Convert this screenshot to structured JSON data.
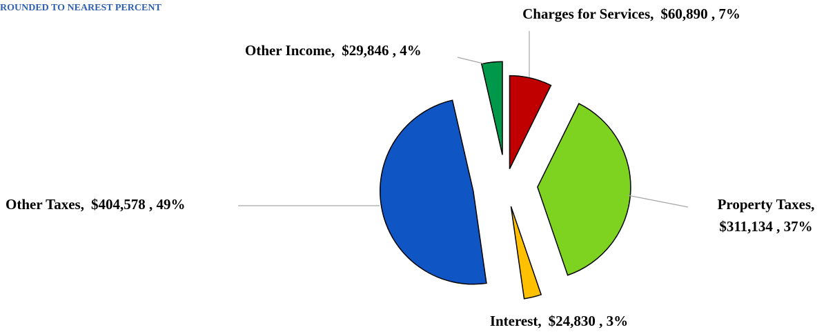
{
  "chart_data": {
    "type": "pie",
    "subtitle": "ROUNDED TO NEAREST PERCENT",
    "categories": [
      "Charges for Services,",
      "Property Taxes,",
      "Interest,",
      "Other Taxes,",
      "Other Income,"
    ],
    "values": [
      60890,
      311134,
      24830,
      404578,
      29846
    ],
    "value_labels": [
      "$60,890 , 7%",
      "$311,134 , 37%",
      "$24,830 , 3%",
      "$404,578 , 49%",
      "$29,846 , 4%"
    ],
    "colors": [
      "#c00000",
      "#7ed321",
      "#ffc000",
      "#0f56c4",
      "#00994c"
    ]
  }
}
